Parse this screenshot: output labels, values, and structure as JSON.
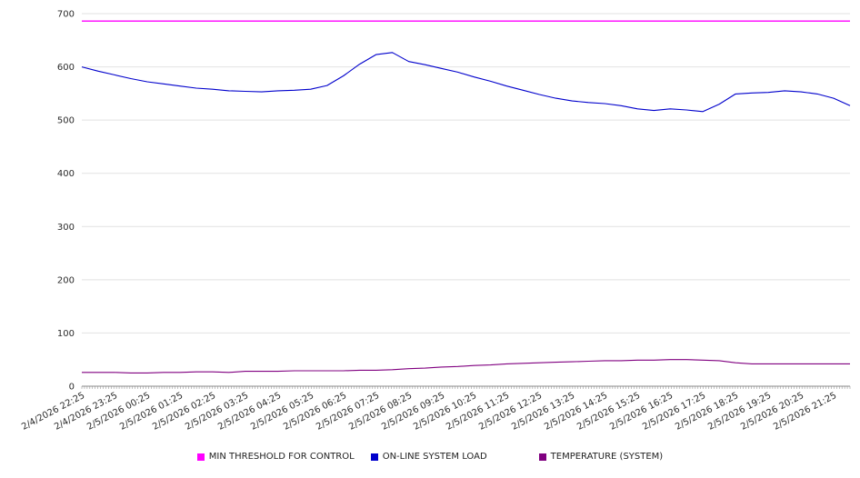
{
  "chart_data": {
    "type": "line",
    "title": "",
    "xlabel": "",
    "ylabel": "",
    "ylim": [
      0,
      700
    ],
    "yticks": [
      0,
      100,
      200,
      300,
      400,
      500,
      600,
      700
    ],
    "grid": "horizontal",
    "legend_position": "bottom",
    "points_per_label": 2,
    "x_minor_ticks_per_label": 12,
    "categories": [
      "2/4/2026 22:25",
      "2/4/2026 23:25",
      "2/5/2026 00:25",
      "2/5/2026 01:25",
      "2/5/2026 02:25",
      "2/5/2026 03:25",
      "2/5/2026 04:25",
      "2/5/2026 05:25",
      "2/5/2026 06:25",
      "2/5/2026 07:25",
      "2/5/2026 08:25",
      "2/5/2026 09:25",
      "2/5/2026 10:25",
      "2/5/2026 11:25",
      "2/5/2026 12:25",
      "2/5/2026 13:25",
      "2/5/2026 14:25",
      "2/5/2026 15:25",
      "2/5/2026 16:25",
      "2/5/2026 17:25",
      "2/5/2026 18:25",
      "2/5/2026 19:25",
      "2/5/2026 20:25",
      "2/5/2026 21:25"
    ],
    "series": [
      {
        "name": "MIN THRESHOLD FOR CONTROL",
        "color": "#ff00ff",
        "constant": 686
      },
      {
        "name": "ON-LINE SYSTEM LOAD",
        "color": "#0000cc",
        "values": [
          600,
          592,
          585,
          578,
          572,
          568,
          564,
          560,
          558,
          555,
          554,
          553,
          555,
          556,
          558,
          565,
          583,
          605,
          623,
          627,
          610,
          604,
          597,
          590,
          581,
          573,
          564,
          556,
          548,
          541,
          536,
          533,
          531,
          527,
          521,
          518,
          521,
          519,
          516,
          530,
          549,
          551,
          552,
          555,
          553,
          549,
          541,
          527
        ]
      },
      {
        "name": "TEMPERATURE (SYSTEM)",
        "color": "#800080",
        "values": [
          26,
          26,
          26,
          25,
          25,
          26,
          26,
          27,
          27,
          26,
          28,
          28,
          28,
          29,
          29,
          29,
          29,
          30,
          30,
          31,
          33,
          34,
          36,
          37,
          39,
          40,
          42,
          43,
          44,
          45,
          46,
          47,
          48,
          48,
          49,
          49,
          50,
          50,
          49,
          48,
          44,
          42,
          42,
          42,
          42,
          42,
          42,
          42
        ]
      }
    ]
  }
}
